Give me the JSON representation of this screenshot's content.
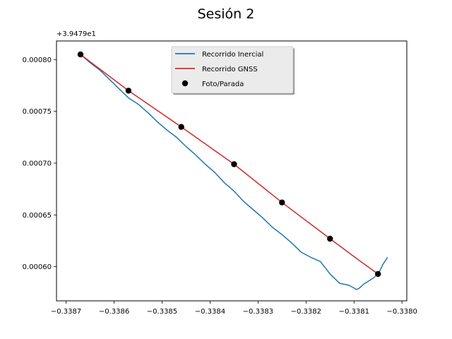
{
  "chart_data": {
    "type": "line",
    "title": "Sesión 2",
    "xlabel": "",
    "ylabel": "",
    "y_offset_label": "+3.9479e1",
    "xlim": [
      -0.33872,
      -0.33799
    ],
    "ylim": [
      0.000567,
      0.000818
    ],
    "x_ticks": [
      -0.3387,
      -0.3386,
      -0.3385,
      -0.3384,
      -0.3383,
      -0.3382,
      -0.3381,
      -0.338
    ],
    "x_tick_labels": [
      "−0.3387",
      "−0.3386",
      "−0.3385",
      "−0.3384",
      "−0.3383",
      "−0.3382",
      "−0.3381",
      "−0.3380"
    ],
    "y_ticks": [
      0.0006,
      0.00065,
      0.0007,
      0.00075,
      0.0008
    ],
    "y_tick_labels": [
      "0.00060",
      "0.00065",
      "0.00070",
      "0.00075",
      "0.00080"
    ],
    "grid": false,
    "legend_position": "top-center",
    "series": [
      {
        "name": "Recorrido Inercial",
        "kind": "line",
        "color": "#1f77b4",
        "x": [
          -0.33867,
          -0.33865,
          -0.33863,
          -0.33861,
          -0.33859,
          -0.33857,
          -0.33855,
          -0.33853,
          -0.33851,
          -0.33849,
          -0.33847,
          -0.33845,
          -0.33843,
          -0.33841,
          -0.33839,
          -0.33837,
          -0.33835,
          -0.33833,
          -0.33831,
          -0.33829,
          -0.33827,
          -0.33825,
          -0.33823,
          -0.33821,
          -0.33819,
          -0.33817,
          -0.33815,
          -0.33813,
          -0.33811,
          -0.338095,
          -0.33809,
          -0.338085,
          -0.33808,
          -0.33807,
          -0.33806,
          -0.33805,
          -0.338045,
          -0.33804,
          -0.33803
        ],
        "y": [
          0.000805,
          0.000797,
          0.00079,
          0.000781,
          0.000772,
          0.000763,
          0.000757,
          0.000749,
          0.00074,
          0.000732,
          0.000725,
          0.000716,
          0.000708,
          0.000699,
          0.000691,
          0.000681,
          0.000673,
          0.000663,
          0.000655,
          0.000647,
          0.000638,
          0.000631,
          0.000623,
          0.000614,
          0.000609,
          0.000605,
          0.000593,
          0.000584,
          0.000582,
          0.000578,
          0.000579,
          0.000581,
          0.000583,
          0.000586,
          0.000589,
          0.000593,
          0.000597,
          0.000602,
          0.000609
        ]
      },
      {
        "name": "Recorrido GNSS",
        "kind": "line",
        "color": "#d62728",
        "x": [
          -0.33867,
          -0.33857,
          -0.33846,
          -0.33835,
          -0.33825,
          -0.33815,
          -0.338095,
          -0.33805
        ],
        "y": [
          0.000805,
          0.00077,
          0.000735,
          0.000699,
          0.000662,
          0.000627,
          0.000608,
          0.000593
        ]
      },
      {
        "name": "Foto/Parada",
        "kind": "scatter",
        "color": "#000000",
        "x": [
          -0.33867,
          -0.33857,
          -0.33846,
          -0.33835,
          -0.33825,
          -0.33815,
          -0.33805
        ],
        "y": [
          0.000805,
          0.00077,
          0.000735,
          0.000699,
          0.000662,
          0.000627,
          0.000593
        ]
      }
    ]
  }
}
